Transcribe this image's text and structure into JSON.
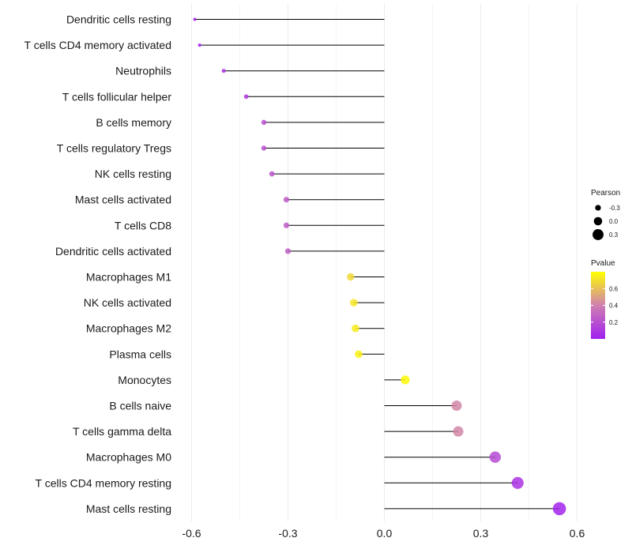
{
  "chart_data": {
    "type": "lollipop",
    "title": "",
    "xlabel": "",
    "ylabel": "",
    "xlim": [
      -0.6,
      0.6
    ],
    "x_ticks": [
      -0.6,
      -0.3,
      0.0,
      0.3,
      0.6
    ],
    "x_tick_labels": [
      "-0.6",
      "-0.3",
      "0.0",
      "0.3",
      "0.6"
    ],
    "grid": true,
    "categories": [
      "Dendritic cells resting",
      "T cells CD4 memory activated",
      "Neutrophils",
      "T cells follicular helper",
      "B cells memory",
      "T cells regulatory  Tregs ",
      "NK cells resting",
      "Mast cells activated",
      "T cells CD8",
      "Dendritic cells activated",
      "Macrophages M1",
      "NK cells activated",
      "Macrophages M2",
      "Plasma cells",
      "Monocytes",
      "B cells naive",
      "T cells gamma delta",
      "Macrophages M0",
      "T cells CD4 memory resting",
      "Mast cells resting"
    ],
    "pearson": [
      -0.59,
      -0.575,
      -0.5,
      -0.43,
      -0.375,
      -0.375,
      -0.35,
      -0.305,
      -0.305,
      -0.3,
      -0.105,
      -0.095,
      -0.09,
      -0.08,
      0.065,
      0.225,
      0.23,
      0.345,
      0.415,
      0.545
    ],
    "pvalue": [
      0.01,
      0.02,
      0.08,
      0.12,
      0.2,
      0.2,
      0.22,
      0.25,
      0.25,
      0.26,
      0.68,
      0.72,
      0.74,
      0.76,
      0.78,
      0.42,
      0.42,
      0.18,
      0.08,
      0.02
    ],
    "legend": {
      "size": {
        "title": "Pearson",
        "labels": [
          "-0.3",
          "0.0",
          "0.3"
        ],
        "values": [
          -0.3,
          0.0,
          0.3
        ]
      },
      "color": {
        "title": "Pvalue",
        "labels": [
          "0.6",
          "0.4",
          "0.2"
        ],
        "values": [
          0.6,
          0.4,
          0.2
        ],
        "range": [
          0.0,
          0.8
        ],
        "low_color": "#a020f0",
        "high_color": "#ffff00"
      },
      "position": "right"
    }
  }
}
